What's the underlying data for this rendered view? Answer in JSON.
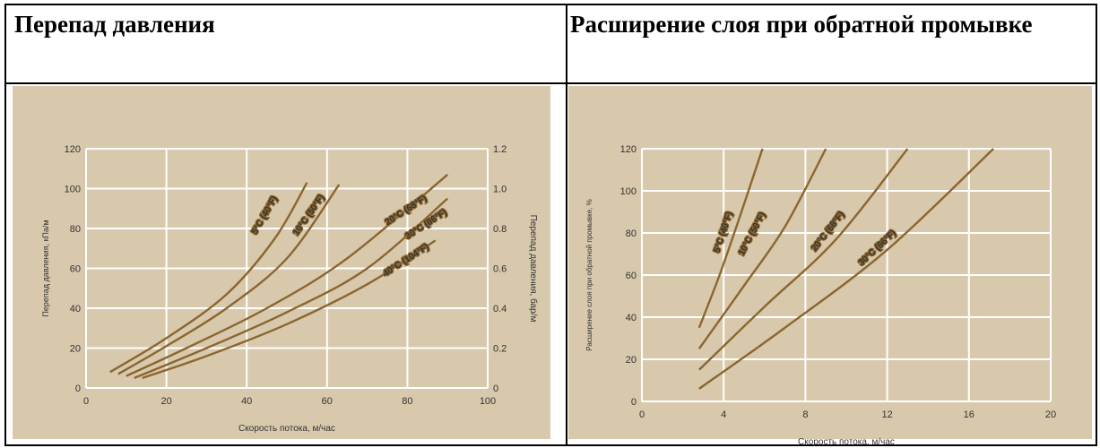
{
  "titles": {
    "left": "Перепад давления",
    "right": "Расширение слоя при обратной промывке"
  },
  "chart_data": [
    {
      "type": "line",
      "title": "",
      "xlabel": "Скорость потока, м/час",
      "ylabel": "Перепад давления, кПа/м",
      "y2label": "Перепад давления, бар/м",
      "xlim": [
        0,
        100
      ],
      "ylim": [
        0,
        120
      ],
      "y2lim": [
        0,
        1.2
      ],
      "xticks": [
        "0",
        "20",
        "40",
        "60",
        "80",
        "100"
      ],
      "yticks": [
        "0",
        "20",
        "40",
        "60",
        "80",
        "100",
        "120"
      ],
      "y2ticks": [
        "0",
        "0.2",
        "0.4",
        "0.6",
        "0.8",
        "1.0",
        "1.2"
      ],
      "grid": true,
      "series": [
        {
          "name": "5°C (40°F)",
          "x": [
            6,
            20,
            35,
            47,
            55
          ],
          "y": [
            8,
            25,
            47,
            75,
            103
          ]
        },
        {
          "name": "10°C (50°F)",
          "x": [
            8,
            20,
            35,
            50,
            63
          ],
          "y": [
            7,
            21,
            40,
            65,
            102
          ]
        },
        {
          "name": "20°C (68°F)",
          "x": [
            10,
            25,
            45,
            65,
            90
          ],
          "y": [
            6,
            20,
            40,
            65,
            107
          ]
        },
        {
          "name": "30°C (86°F)",
          "x": [
            12,
            30,
            50,
            70,
            90
          ],
          "y": [
            5,
            20,
            38,
            60,
            95
          ]
        },
        {
          "name": "40°C (104°F)",
          "x": [
            14,
            30,
            50,
            70,
            87
          ],
          "y": [
            5,
            16,
            32,
            52,
            74
          ]
        }
      ]
    },
    {
      "type": "line",
      "title": "",
      "xlabel": "Скорость потока, м/час",
      "ylabel": "Расширение слоя при обратной промывке, %",
      "xlim": [
        0,
        20
      ],
      "ylim": [
        0,
        120
      ],
      "xticks": [
        "0",
        "4",
        "8",
        "12",
        "16",
        "20"
      ],
      "yticks": [
        "0",
        "20",
        "40",
        "60",
        "80",
        "100",
        "120"
      ],
      "grid": true,
      "series": [
        {
          "name": "5°C (40°F)",
          "x": [
            2.8,
            3.8,
            4.8,
            5.9
          ],
          "y": [
            35,
            60,
            88,
            120
          ]
        },
        {
          "name": "10°C (50°F)",
          "x": [
            2.8,
            5,
            7,
            9
          ],
          "y": [
            25,
            55,
            83,
            120
          ]
        },
        {
          "name": "20°C (68°F)",
          "x": [
            2.8,
            6,
            9.5,
            13
          ],
          "y": [
            15,
            45,
            77,
            120
          ]
        },
        {
          "name": "30°C (86°F)",
          "x": [
            2.8,
            7,
            12,
            17.2
          ],
          "y": [
            6,
            35,
            72,
            120
          ]
        }
      ]
    }
  ]
}
